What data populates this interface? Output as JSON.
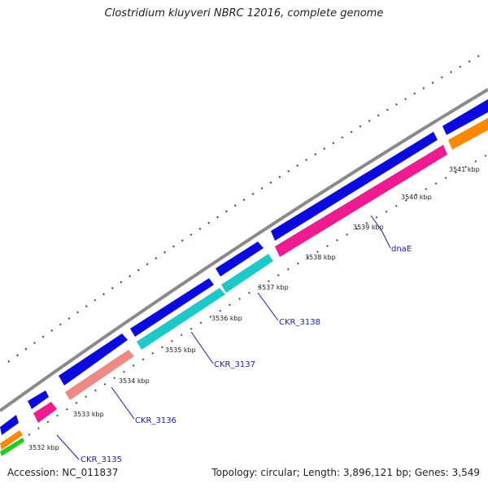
{
  "title": "Clostridium kluyveri NBRC 12016, complete genome",
  "accession": "Accession: NC_011837",
  "summary": "Topology: circular; Length: 3,896,121 bp; Genes: 3,549",
  "colors": {
    "backbone": "#8a8a8a",
    "gene_forward": "#0a0adf",
    "gene_pink": "#ee1a8f",
    "gene_cyan": "#1cc8c8",
    "gene_salmon": "#ee8a86",
    "gene_orange": "#ff8a00",
    "gene_green": "#22cc22",
    "tick": "#1c6e1c",
    "label": "#1a1acc"
  },
  "ticks": [
    {
      "label": "3532 kbp"
    },
    {
      "label": "3533 kbp"
    },
    {
      "label": "3534 kbp"
    },
    {
      "label": "3535 kbp"
    },
    {
      "label": "3536 kbp"
    },
    {
      "label": "3537 kbp"
    },
    {
      "label": "3538 kbp"
    },
    {
      "label": "3539 kbp"
    },
    {
      "label": "3540 kbp"
    },
    {
      "label": "3541 kbp"
    }
  ],
  "genes": [
    {
      "label": "CKR_3135"
    },
    {
      "label": "CKR_3136"
    },
    {
      "label": "CKR_3137"
    },
    {
      "label": "CKR_3138"
    },
    {
      "label": "dnaE"
    }
  ]
}
